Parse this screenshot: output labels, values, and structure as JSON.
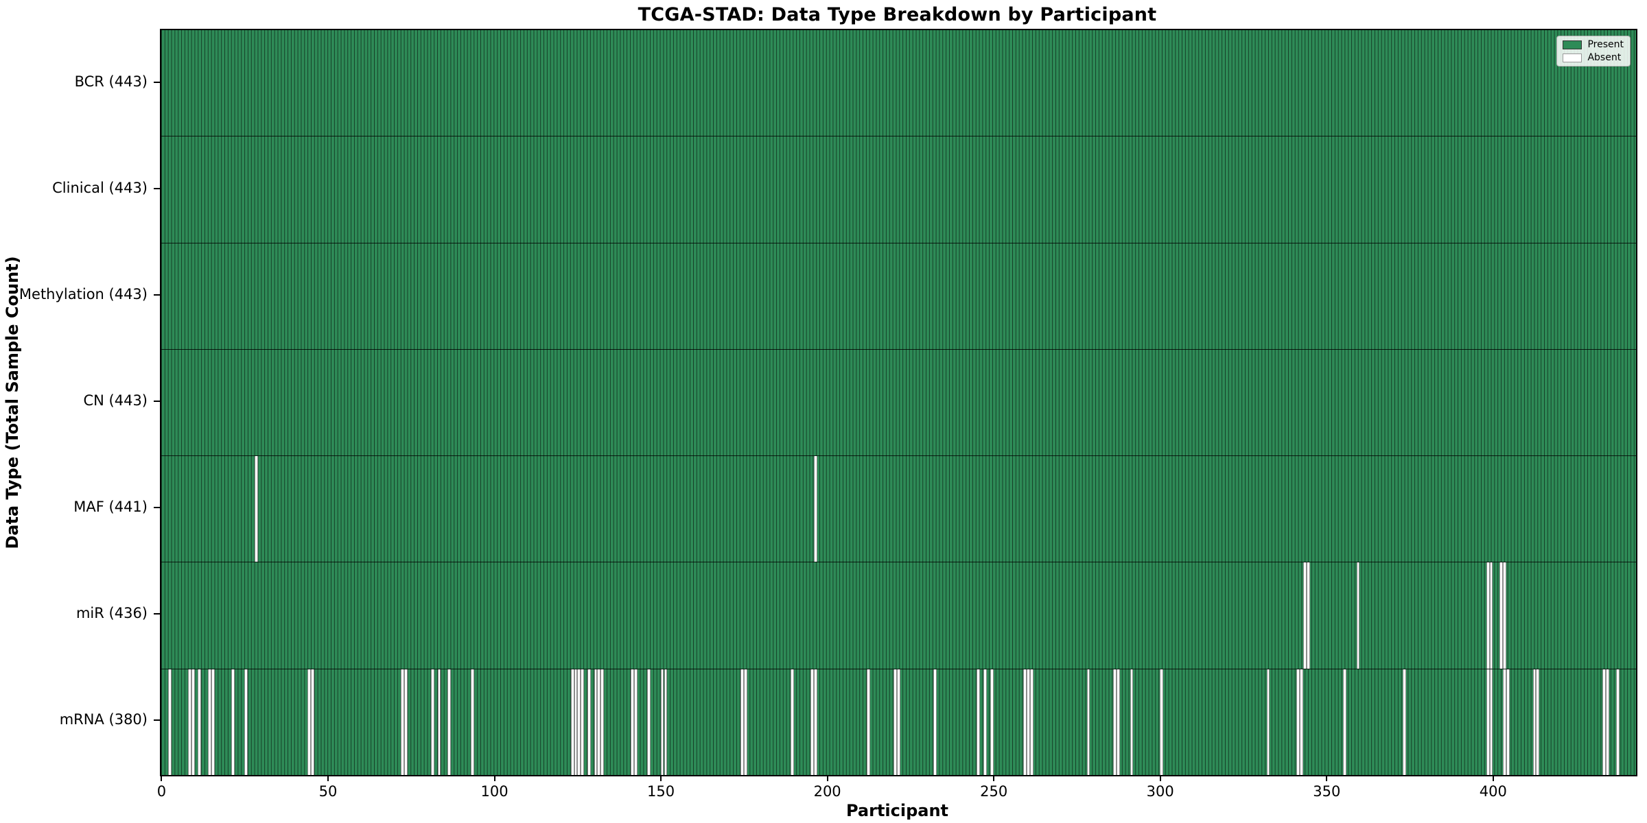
{
  "title": "TCGA-STAD: Data Type Breakdown by Participant",
  "xlabel": "Participant",
  "ylabel": "Data Type (Total Sample Count)",
  "legend": {
    "present_label": "Present",
    "absent_label": "Absent"
  },
  "colors": {
    "present": "#2e8b57",
    "absent": "#ffffff",
    "bar_edge": "rgba(0,0,0,0.55)"
  },
  "chart_data": {
    "type": "heatmap",
    "title": "TCGA-STAD: Data Type Breakdown by Participant",
    "xlabel": "Participant",
    "ylabel": "Data Type (Total Sample Count)",
    "n_participants": 443,
    "x_range": [
      0,
      443
    ],
    "x_ticks": [
      0,
      50,
      100,
      150,
      200,
      250,
      300,
      350,
      400
    ],
    "grid": false,
    "legend_position": "upper right",
    "legend_entries": [
      {
        "label": "Present",
        "color": "#2e8b57"
      },
      {
        "label": "Absent",
        "color": "#ffffff"
      }
    ],
    "rows": [
      {
        "label": "BCR (443)",
        "data_type": "BCR",
        "present_count": 443,
        "absent_participants": []
      },
      {
        "label": "Clinical (443)",
        "data_type": "Clinical",
        "present_count": 443,
        "absent_participants": []
      },
      {
        "label": "Methylation (443)",
        "data_type": "Methylation",
        "present_count": 443,
        "absent_participants": []
      },
      {
        "label": "CN (443)",
        "data_type": "CN",
        "present_count": 443,
        "absent_participants": []
      },
      {
        "label": "MAF (441)",
        "data_type": "MAF",
        "present_count": 441,
        "absent_participants": [
          28,
          196
        ]
      },
      {
        "label": "miR (436)",
        "data_type": "miR",
        "present_count": 436,
        "absent_participants": [
          343,
          344,
          359,
          398,
          399,
          402,
          403
        ]
      },
      {
        "label": "mRNA (380)",
        "data_type": "mRNA",
        "present_count": 380,
        "absent_participants": [
          2,
          8,
          9,
          11,
          14,
          15,
          21,
          25,
          44,
          45,
          72,
          73,
          81,
          83,
          86,
          93,
          123,
          124,
          125,
          126,
          128,
          130,
          131,
          132,
          141,
          142,
          146,
          150,
          151,
          174,
          175,
          189,
          195,
          196,
          212,
          220,
          221,
          232,
          245,
          247,
          249,
          259,
          260,
          261,
          278,
          286,
          287,
          291,
          300,
          332,
          341,
          342,
          355,
          373,
          398,
          399,
          403,
          404,
          412,
          413,
          433,
          434,
          437
        ]
      }
    ]
  }
}
